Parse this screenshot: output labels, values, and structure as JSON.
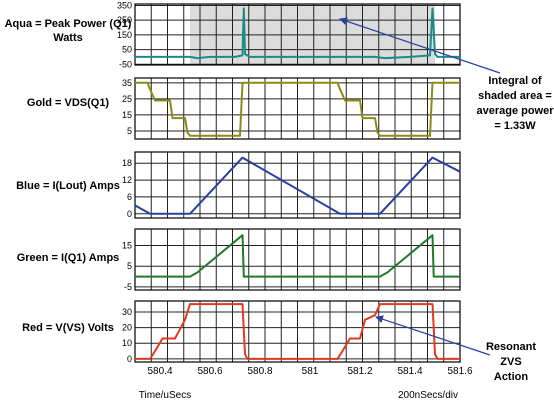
{
  "chart_data": {
    "type": "line",
    "x_axis": {
      "title": "Time/uSecs",
      "scale_label": "200nSecs/div",
      "range": [
        580.3,
        581.6
      ],
      "ticks": [
        "580.4",
        "580.6",
        "580.8",
        "581",
        "581.2",
        "581.4",
        "581.6"
      ],
      "tick_values": [
        580.4,
        580.6,
        580.8,
        581.0,
        581.2,
        581.4,
        581.6
      ]
    },
    "panels": [
      {
        "label_lines": [
          "Aqua = Peak Power (Q1)",
          "Watts"
        ],
        "color": "#1a8a8a",
        "ylim": [
          -55,
          360
        ],
        "yticks": [
          "350",
          "250",
          "150",
          "50",
          "-50"
        ],
        "ytick_values": [
          350,
          250,
          150,
          50,
          -50
        ],
        "shaded_region": [
          580.52,
          581.5
        ],
        "x": [
          580.3,
          580.52,
          580.55,
          580.6,
          580.7,
          580.73,
          580.735,
          580.74,
          580.76,
          580.9,
          581.0,
          581.1,
          581.2,
          581.26,
          581.3,
          581.4,
          581.48,
          581.49,
          581.5,
          581.51,
          581.6
        ],
        "y": [
          0,
          0,
          -8,
          0,
          0,
          10,
          330,
          20,
          0,
          0,
          0,
          0,
          0,
          0,
          -8,
          0,
          10,
          330,
          20,
          0,
          0
        ]
      },
      {
        "label_lines": [
          "Gold = VDS(Q1)"
        ],
        "color": "#8c8c14",
        "ylim": [
          0,
          38
        ],
        "yticks": [
          "35",
          "25",
          "15",
          "5"
        ],
        "ytick_values": [
          35,
          25,
          15,
          5
        ],
        "x": [
          580.3,
          580.35,
          580.36,
          580.38,
          580.39,
          580.41,
          580.44,
          580.45,
          580.5,
          580.51,
          580.52,
          580.6,
          580.72,
          580.73,
          580.74,
          581.0,
          581.11,
          581.12,
          581.14,
          581.15,
          581.17,
          581.2,
          581.21,
          581.26,
          581.27,
          581.28,
          581.4,
          581.48,
          581.49,
          581.5,
          581.6
        ],
        "y": [
          35,
          35,
          31,
          24,
          24,
          24,
          24,
          13,
          13,
          4,
          2,
          2,
          2,
          35,
          35,
          35,
          35,
          31,
          24,
          24,
          24,
          24,
          13,
          13,
          4,
          2,
          2,
          2,
          35,
          35,
          35
        ]
      },
      {
        "label_lines": [
          "Blue = I(Lout) Amps"
        ],
        "color": "#2a3fa0",
        "ylim": [
          -1.5,
          22
        ],
        "yticks": [
          "18",
          "12",
          "6",
          "0"
        ],
        "ytick_values": [
          18,
          12,
          6,
          0
        ],
        "x": [
          580.3,
          580.36,
          580.52,
          580.73,
          581.12,
          581.28,
          581.49,
          581.6
        ],
        "y": [
          3,
          0,
          0,
          20,
          0,
          0,
          20,
          15
        ]
      },
      {
        "label_lines": [
          "Green = I(Q1) Amps"
        ],
        "color": "#1f7a2a",
        "ylim": [
          -6.5,
          23
        ],
        "yticks": [
          "15",
          "5",
          "-5"
        ],
        "ytick_values": [
          15,
          5,
          -5
        ],
        "x": [
          580.3,
          580.52,
          580.55,
          580.73,
          580.735,
          580.74,
          581.0,
          581.28,
          581.31,
          581.49,
          581.495,
          581.5,
          581.6
        ],
        "y": [
          0,
          0,
          2,
          20,
          0,
          0,
          0,
          0,
          2,
          20,
          0,
          0,
          0
        ]
      },
      {
        "label_lines": [
          "Red = V(VS) Volts"
        ],
        "color": "#e03a1e",
        "ylim": [
          -2,
          37
        ],
        "yticks": [
          "30",
          "20",
          "10",
          "0"
        ],
        "ytick_values": [
          30,
          20,
          10,
          0
        ],
        "x": [
          580.3,
          580.36,
          580.38,
          580.41,
          580.44,
          580.46,
          580.5,
          580.52,
          580.73,
          580.74,
          580.75,
          581.0,
          581.11,
          581.13,
          581.16,
          581.2,
          581.22,
          581.26,
          581.28,
          581.49,
          581.5,
          581.51,
          581.6
        ],
        "y": [
          0,
          0,
          5,
          13,
          13,
          13,
          25,
          35,
          35,
          3,
          0,
          0,
          0,
          5,
          13,
          13,
          25,
          28,
          35,
          35,
          3,
          0,
          0
        ]
      }
    ],
    "annotations": [
      {
        "lines": [
          "Integral of",
          "shaded area =",
          "average power",
          "= 1.33W"
        ]
      },
      {
        "lines": [
          "Resonant",
          "ZVS",
          "Action"
        ]
      }
    ]
  }
}
